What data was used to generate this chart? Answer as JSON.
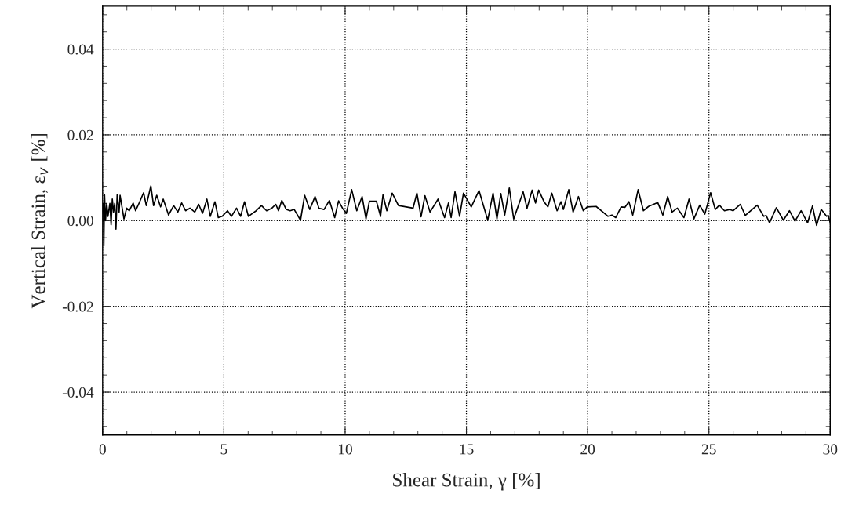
{
  "chart_data": {
    "type": "line",
    "xlabel": "Shear Strain, γ [%]",
    "ylabel": "Vertical Strain, ε$_{v}$ [%]",
    "xlim": [
      0,
      30
    ],
    "xticks": [
      0,
      5,
      10,
      15,
      20,
      25,
      30
    ],
    "ylim": [
      -0.05,
      0.05
    ],
    "yticks": [
      {
        "value": -0.04,
        "label": "-0.04"
      },
      {
        "value": -0.02,
        "label": "-0.02"
      },
      {
        "value": 0,
        "label": "0.00"
      },
      {
        "value": 0.02,
        "label": "0.02"
      },
      {
        "value": 0.04,
        "label": "0.04"
      }
    ],
    "grid": true,
    "marker": "none",
    "line_style": "solid",
    "series": [
      {
        "color": "#000000",
        "x": [
          0.0,
          0.03,
          0.05,
          0.08,
          0.12,
          0.17,
          0.22,
          0.3,
          0.35,
          0.4,
          0.45,
          0.5,
          0.55,
          0.6,
          0.68,
          0.72,
          0.88,
          0.99,
          1.1,
          1.26,
          1.36,
          1.53,
          1.69,
          1.8,
          1.99,
          2.1,
          2.23,
          2.39,
          2.5,
          2.72,
          2.93,
          3.1,
          3.26,
          3.42,
          3.6,
          3.8,
          3.96,
          4.12,
          4.3,
          4.44,
          4.63,
          4.77,
          4.93,
          5.15,
          5.31,
          5.52,
          5.69,
          5.85,
          6.01,
          6.33,
          6.55,
          6.76,
          6.98,
          7.14,
          7.25,
          7.39,
          7.57,
          7.73,
          7.9,
          8.16,
          8.33,
          8.54,
          8.76,
          8.92,
          9.13,
          9.35,
          9.57,
          9.73,
          9.89,
          10.05,
          10.27,
          10.48,
          10.7,
          10.86,
          11.0,
          11.29,
          11.46,
          11.56,
          11.72,
          11.94,
          12.2,
          12.8,
          12.96,
          13.13,
          13.29,
          13.5,
          13.83,
          14.1,
          14.26,
          14.37,
          14.53,
          14.72,
          14.88,
          15.2,
          15.52,
          15.88,
          16.1,
          16.26,
          16.42,
          16.58,
          16.77,
          16.95,
          17.34,
          17.5,
          17.71,
          17.85,
          17.98,
          18.2,
          18.36,
          18.52,
          18.74,
          18.9,
          19.0,
          19.22,
          19.4,
          19.62,
          19.82,
          19.98,
          20.35,
          20.84,
          21.0,
          21.16,
          21.38,
          21.54,
          21.7,
          21.86,
          22.08,
          22.3,
          22.51,
          22.89,
          23.1,
          23.3,
          23.48,
          23.7,
          23.97,
          24.18,
          24.38,
          24.62,
          24.83,
          25.07,
          25.26,
          25.43,
          25.64,
          25.85,
          26.0,
          26.29,
          26.5,
          26.99,
          27.26,
          27.36,
          27.5,
          27.78,
          28.07,
          28.32,
          28.55,
          28.8,
          29.07,
          29.27,
          29.44,
          29.63,
          29.85,
          29.92,
          30.0
        ],
        "values": [
          0.002,
          0.004,
          -0.006,
          0.006,
          0.0,
          0.004,
          0.001,
          0.004,
          -0.001,
          0.005,
          0.002,
          0.004,
          -0.002,
          0.006,
          0.002,
          0.0059,
          0.0004,
          0.0029,
          0.0023,
          0.0041,
          0.0023,
          0.0044,
          0.0065,
          0.0035,
          0.0081,
          0.0035,
          0.0059,
          0.0032,
          0.005,
          0.0013,
          0.0035,
          0.002,
          0.0041,
          0.0023,
          0.0029,
          0.002,
          0.0038,
          0.0017,
          0.005,
          0.001,
          0.0044,
          0.0007,
          0.001,
          0.0023,
          0.001,
          0.0029,
          0.001,
          0.0044,
          0.001,
          0.0023,
          0.0035,
          0.0023,
          0.0029,
          0.0038,
          0.0023,
          0.0047,
          0.0026,
          0.0023,
          0.0026,
          0.0001,
          0.0059,
          0.0026,
          0.0056,
          0.0029,
          0.0026,
          0.0047,
          0.0007,
          0.0046,
          0.0029,
          0.0017,
          0.0072,
          0.0023,
          0.0056,
          0.0004,
          0.0045,
          0.0045,
          0.001,
          0.006,
          0.0023,
          0.0064,
          0.0035,
          0.0029,
          0.0064,
          0.0009,
          0.0058,
          0.002,
          0.005,
          0.0007,
          0.0041,
          0.0007,
          0.0067,
          0.001,
          0.0064,
          0.0032,
          0.007,
          0.0001,
          0.0064,
          0.0004,
          0.0063,
          0.0013,
          0.0076,
          0.0004,
          0.0067,
          0.0029,
          0.0071,
          0.0041,
          0.0071,
          0.0044,
          0.0032,
          0.0064,
          0.0023,
          0.0044,
          0.0026,
          0.0072,
          0.002,
          0.0056,
          0.0023,
          0.0032,
          0.0033,
          0.001,
          0.0013,
          0.0007,
          0.0032,
          0.0031,
          0.0044,
          0.0013,
          0.0072,
          0.0023,
          0.0033,
          0.0042,
          0.0013,
          0.0056,
          0.002,
          0.0029,
          0.0007,
          0.005,
          0.0004,
          0.0036,
          0.0015,
          0.0065,
          0.0026,
          0.0036,
          0.0023,
          0.0026,
          0.0023,
          0.0038,
          0.0012,
          0.0036,
          0.001,
          0.0012,
          -0.0005,
          0.003,
          0.0001,
          0.0023,
          -0.0001,
          0.0023,
          -0.0005,
          0.0034,
          -0.0011,
          0.0026,
          0.001,
          0.0012,
          -0.0005
        ]
      }
    ]
  }
}
